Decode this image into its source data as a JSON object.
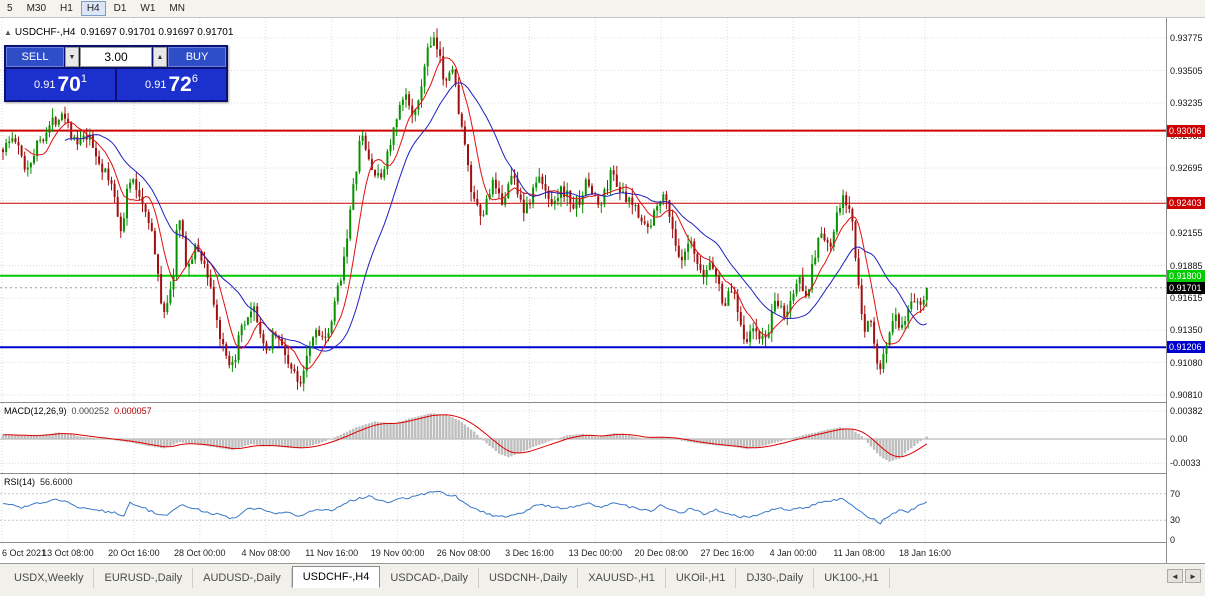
{
  "window": {
    "toolbar_timeframes": [
      "5",
      "M30",
      "H1",
      "H4",
      "D1",
      "W1",
      "MN"
    ],
    "active_timeframe": "H4"
  },
  "chart_header": {
    "marker": "▲",
    "symbol": "USDCHF-,H4",
    "ohlc": "0.91697 0.91701 0.91697 0.91701"
  },
  "trade_widget": {
    "sell_label": "SELL",
    "buy_label": "BUY",
    "volume": "3.00",
    "volume_down_icon": "▼",
    "volume_up_icon": "▲",
    "sell_price": {
      "prefix": "0.91",
      "big": "70",
      "sup": "1"
    },
    "buy_price": {
      "prefix": "0.91",
      "big": "72",
      "sup": "6"
    }
  },
  "colors": {
    "grid": "#DCDCDC",
    "candle_up": "#089000",
    "candle_down": "#A01010",
    "ma_fast": "#E01010",
    "ma_slow": "#2020C0",
    "macd_hist": "#BEBEBE",
    "macd_signal": "#DD0000",
    "rsi_line": "#3878C8",
    "current_price_bg": "#000000"
  },
  "chart_data": {
    "type": "candlestick",
    "symbol": "USDCHF",
    "timeframe": "H4",
    "bars": 299,
    "y_ticks": [
      "0.93775",
      "0.93505",
      "0.93235",
      "0.92965",
      "0.92695",
      "0.92425",
      "0.92155",
      "0.91885",
      "0.91615",
      "0.91350",
      "0.91080",
      "0.90810"
    ],
    "levels": [
      {
        "price": 0.93006,
        "label": "0.93006",
        "color": "#CC0000",
        "width": 2
      },
      {
        "price": 0.92403,
        "label": "0.92403",
        "color": "#CC0000",
        "width": 1
      },
      {
        "price": 0.918,
        "label": "0.91800",
        "color": "#00CC00",
        "width": 2
      },
      {
        "price": 0.91206,
        "label": "0.91206",
        "color": "#0000CC",
        "width": 2
      }
    ],
    "current_price": {
      "value": 0.91701,
      "label": "0.91701"
    },
    "time_labels": [
      "6 Oct 2021",
      "13 Oct 08:00",
      "20 Oct 16:00",
      "28 Oct 00:00",
      "4 Nov 08:00",
      "11 Nov 16:00",
      "19 Nov 00:00",
      "26 Nov 08:00",
      "3 Dec 16:00",
      "13 Dec 00:00",
      "20 Dec 08:00",
      "27 Dec 16:00",
      "4 Jan 00:00",
      "11 Jan 08:00",
      "18 Jan 16:00"
    ],
    "price_keyframes": [
      [
        0,
        0.9285
      ],
      [
        4,
        0.9295
      ],
      [
        8,
        0.9268
      ],
      [
        12,
        0.9292
      ],
      [
        16,
        0.9306
      ],
      [
        20,
        0.9318
      ],
      [
        24,
        0.9288
      ],
      [
        28,
        0.9295
      ],
      [
        32,
        0.9272
      ],
      [
        36,
        0.9252
      ],
      [
        39,
        0.9215
      ],
      [
        41,
        0.9262
      ],
      [
        44,
        0.925
      ],
      [
        48,
        0.9225
      ],
      [
        52,
        0.915
      ],
      [
        55,
        0.9168
      ],
      [
        57,
        0.9232
      ],
      [
        60,
        0.9185
      ],
      [
        63,
        0.9205
      ],
      [
        67,
        0.9178
      ],
      [
        71,
        0.9122
      ],
      [
        74,
        0.9098
      ],
      [
        77,
        0.9132
      ],
      [
        82,
        0.9152
      ],
      [
        85,
        0.9112
      ],
      [
        88,
        0.9135
      ],
      [
        92,
        0.9112
      ],
      [
        96,
        0.9088
      ],
      [
        99,
        0.9122
      ],
      [
        102,
        0.9138
      ],
      [
        105,
        0.9122
      ],
      [
        110,
        0.9188
      ],
      [
        113,
        0.9242
      ],
      [
        116,
        0.9298
      ],
      [
        119,
        0.9272
      ],
      [
        122,
        0.9258
      ],
      [
        126,
        0.9295
      ],
      [
        130,
        0.933
      ],
      [
        134,
        0.9312
      ],
      [
        137,
        0.9365
      ],
      [
        140,
        0.9374
      ],
      [
        143,
        0.9342
      ],
      [
        145,
        0.9358
      ],
      [
        148,
        0.9312
      ],
      [
        152,
        0.9242
      ],
      [
        155,
        0.9226
      ],
      [
        158,
        0.9258
      ],
      [
        161,
        0.924
      ],
      [
        165,
        0.9264
      ],
      [
        169,
        0.9232
      ],
      [
        173,
        0.9262
      ],
      [
        177,
        0.9242
      ],
      [
        181,
        0.9252
      ],
      [
        185,
        0.9236
      ],
      [
        189,
        0.9258
      ],
      [
        193,
        0.9236
      ],
      [
        197,
        0.9268
      ],
      [
        201,
        0.9242
      ],
      [
        205,
        0.9236
      ],
      [
        209,
        0.9216
      ],
      [
        212,
        0.9248
      ],
      [
        215,
        0.924
      ],
      [
        219,
        0.9186
      ],
      [
        222,
        0.9208
      ],
      [
        226,
        0.9176
      ],
      [
        229,
        0.9194
      ],
      [
        233,
        0.9156
      ],
      [
        236,
        0.917
      ],
      [
        240,
        0.9126
      ],
      [
        243,
        0.9136
      ],
      [
        246,
        0.9124
      ],
      [
        250,
        0.9158
      ],
      [
        253,
        0.9146
      ],
      [
        257,
        0.9178
      ],
      [
        260,
        0.9166
      ],
      [
        264,
        0.9218
      ],
      [
        267,
        0.92
      ],
      [
        271,
        0.9244
      ],
      [
        274,
        0.9234
      ],
      [
        276,
        0.9182
      ],
      [
        278,
        0.9132
      ],
      [
        280,
        0.915
      ],
      [
        283,
        0.9096
      ],
      [
        285,
        0.912
      ],
      [
        288,
        0.9146
      ],
      [
        291,
        0.9132
      ],
      [
        294,
        0.9164
      ],
      [
        296,
        0.915
      ],
      [
        298,
        0.917
      ]
    ]
  },
  "macd": {
    "title": "MACD(12,26,9)",
    "value_main": "0.000252",
    "value_signal": "0.000057",
    "scale": [
      {
        "label": "0.00382",
        "value": 0.00382
      },
      {
        "label": "0.00",
        "value": 0
      },
      {
        "label": "-0.0033",
        "value": -0.0033
      }
    ],
    "keyframes": [
      [
        0,
        0.0006
      ],
      [
        10,
        0.0004
      ],
      [
        18,
        0.0009
      ],
      [
        26,
        0.0003
      ],
      [
        34,
        -0.0001
      ],
      [
        40,
        -0.0004
      ],
      [
        46,
        -0.0009
      ],
      [
        52,
        -0.0013
      ],
      [
        57,
        -0.0004
      ],
      [
        62,
        -0.0007
      ],
      [
        68,
        -0.0011
      ],
      [
        74,
        -0.0015
      ],
      [
        80,
        -0.0007
      ],
      [
        86,
        -0.0009
      ],
      [
        92,
        -0.0012
      ],
      [
        96,
        -0.0013
      ],
      [
        102,
        -0.0006
      ],
      [
        108,
        0.0004
      ],
      [
        114,
        0.0016
      ],
      [
        120,
        0.0024
      ],
      [
        126,
        0.0021
      ],
      [
        132,
        0.0029
      ],
      [
        138,
        0.0035
      ],
      [
        143,
        0.0033
      ],
      [
        147,
        0.0026
      ],
      [
        152,
        0.001
      ],
      [
        156,
        -0.0006
      ],
      [
        160,
        -0.002
      ],
      [
        163,
        -0.0025
      ],
      [
        167,
        -0.0019
      ],
      [
        172,
        -0.0009
      ],
      [
        177,
        -0.0002
      ],
      [
        182,
        0.0005
      ],
      [
        187,
        0.0007
      ],
      [
        192,
        0.0003
      ],
      [
        197,
        0.0008
      ],
      [
        202,
        0.0005
      ],
      [
        207,
        0.0
      ],
      [
        211,
        0.0003
      ],
      [
        216,
        0.0001
      ],
      [
        221,
        -0.0004
      ],
      [
        226,
        -0.0007
      ],
      [
        231,
        -0.0009
      ],
      [
        236,
        -0.0011
      ],
      [
        240,
        -0.0014
      ],
      [
        245,
        -0.001
      ],
      [
        250,
        -0.0004
      ],
      [
        255,
        0.0002
      ],
      [
        260,
        0.0007
      ],
      [
        265,
        0.0012
      ],
      [
        270,
        0.0016
      ],
      [
        274,
        0.0013
      ],
      [
        277,
        0.0004
      ],
      [
        280,
        -0.001
      ],
      [
        283,
        -0.0024
      ],
      [
        286,
        -0.0031
      ],
      [
        289,
        -0.0027
      ],
      [
        292,
        -0.0016
      ],
      [
        295,
        -0.0006
      ],
      [
        298,
        0.0003
      ]
    ]
  },
  "rsi": {
    "title": "RSI(14)",
    "value": "56.6000",
    "scale": [
      {
        "label": "70",
        "value": 70
      },
      {
        "label": "30",
        "value": 30
      },
      {
        "label": "0",
        "value": 0
      }
    ],
    "levels": [
      70,
      30
    ],
    "keyframes": [
      [
        0,
        55
      ],
      [
        6,
        49
      ],
      [
        12,
        57
      ],
      [
        18,
        61
      ],
      [
        24,
        50
      ],
      [
        30,
        46
      ],
      [
        36,
        41
      ],
      [
        39,
        36
      ],
      [
        41,
        56
      ],
      [
        46,
        47
      ],
      [
        52,
        36
      ],
      [
        57,
        53
      ],
      [
        62,
        47
      ],
      [
        68,
        40
      ],
      [
        74,
        33
      ],
      [
        79,
        46
      ],
      [
        83,
        50
      ],
      [
        87,
        41
      ],
      [
        92,
        43
      ],
      [
        96,
        36
      ],
      [
        101,
        46
      ],
      [
        106,
        45
      ],
      [
        112,
        59
      ],
      [
        118,
        66
      ],
      [
        123,
        57
      ],
      [
        130,
        64
      ],
      [
        137,
        71
      ],
      [
        141,
        73
      ],
      [
        146,
        66
      ],
      [
        152,
        47
      ],
      [
        157,
        38
      ],
      [
        162,
        36
      ],
      [
        168,
        43
      ],
      [
        173,
        55
      ],
      [
        178,
        48
      ],
      [
        184,
        51
      ],
      [
        189,
        57
      ],
      [
        193,
        49
      ],
      [
        197,
        58
      ],
      [
        203,
        49
      ],
      [
        209,
        43
      ],
      [
        212,
        53
      ],
      [
        219,
        41
      ],
      [
        222,
        49
      ],
      [
        226,
        39
      ],
      [
        230,
        46
      ],
      [
        234,
        39
      ],
      [
        240,
        34
      ],
      [
        245,
        41
      ],
      [
        250,
        49
      ],
      [
        255,
        46
      ],
      [
        260,
        51
      ],
      [
        264,
        58
      ],
      [
        269,
        62
      ],
      [
        272,
        60
      ],
      [
        276,
        45
      ],
      [
        280,
        33
      ],
      [
        283,
        26
      ],
      [
        286,
        36
      ],
      [
        289,
        46
      ],
      [
        292,
        43
      ],
      [
        295,
        52
      ],
      [
        298,
        56.6
      ]
    ]
  },
  "tabs": {
    "items": [
      "USDX,Weekly",
      "EURUSD-,Daily",
      "AUDUSD-,Daily",
      "USDCHF-,H4",
      "USDCAD-,Daily",
      "USDCNH-,Daily",
      "XAUUSD-,H1",
      "UKOil-,H1",
      "DJ30-,Daily",
      "UK100-,H1"
    ],
    "active": "USDCHF-,H4"
  },
  "tab_scroll": {
    "left": "◄",
    "right": "►"
  }
}
